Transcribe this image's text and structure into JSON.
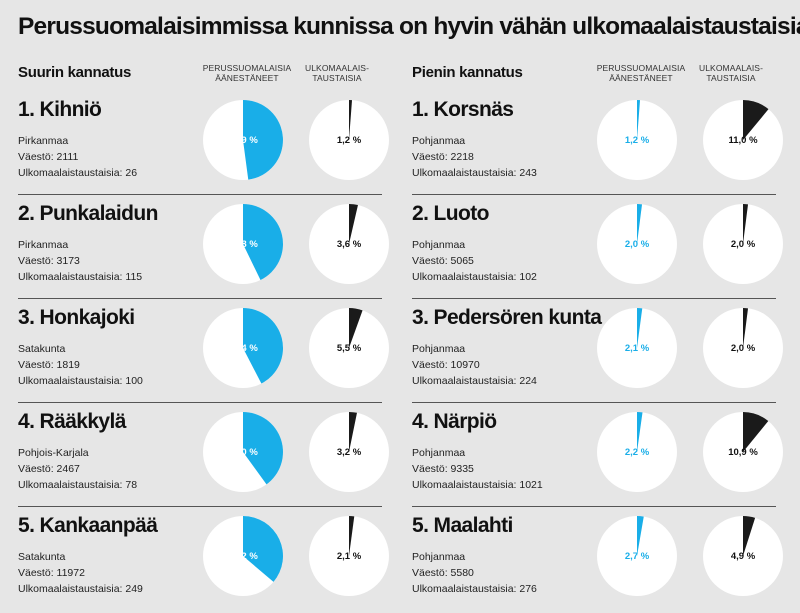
{
  "title": "Perussuomalaisimmissa kunnissa on hyvin vähän ulkomaalaistaustaisia",
  "chart_data": [
    {
      "type": "pie",
      "section": "Suurin kannatus",
      "col_header_ps": "PERUSSUOMALAISIA ÄÄNESTÄNEET",
      "col_header_ul": "ULKOMAALAIS-TAUSTAISIA",
      "rows": [
        {
          "name": "1. Kihniö",
          "region": "Pirkanmaa",
          "population": "Väestö: 2111",
          "foreign": "Ulkomaalaistaustaisia: 26",
          "ps_value": 47.9,
          "ps_label": "47,9 %",
          "ul_value": 1.2,
          "ul_label": "1,2 %"
        },
        {
          "name": "2. Punkalaidun",
          "region": "Pirkanmaa",
          "population": "Väestö: 3173",
          "foreign": "Ulkomaalaistaustaisia: 115",
          "ps_value": 42.8,
          "ps_label": "42,8 %",
          "ul_value": 3.6,
          "ul_label": "3,6 %"
        },
        {
          "name": "3. Honkajoki",
          "region": "Satakunta",
          "population": "Väestö: 1819",
          "foreign": "Ulkomaalaistaustaisia: 100",
          "ps_value": 42.4,
          "ps_label": "42,4 %",
          "ul_value": 5.5,
          "ul_label": "5,5 %"
        },
        {
          "name": "4. Rääkkylä",
          "region": "Pohjois-Karjala",
          "population": "Väestö: 2467",
          "foreign": "Ulkomaalaistaustaisia: 78",
          "ps_value": 40.0,
          "ps_label": "40,0 %",
          "ul_value": 3.2,
          "ul_label": "3,2 %"
        },
        {
          "name": "5. Kankaanpää",
          "region": "Satakunta",
          "population": "Väestö: 11972",
          "foreign": "Ulkomaalaistaustaisia: 249",
          "ps_value": 36.2,
          "ps_label": "36,2 %",
          "ul_value": 2.1,
          "ul_label": "2,1 %"
        }
      ]
    },
    {
      "type": "pie",
      "section": "Pienin kannatus",
      "col_header_ps": "PERUSSUOMALAISIA ÄÄNESTÄNEET",
      "col_header_ul": "ULKOMAALAIS-TAUSTAISIA",
      "rows": [
        {
          "name": "1. Korsnäs",
          "region": "Pohjanmaa",
          "population": "Väestö: 2218",
          "foreign": "Ulkomaalaistaustaisia: 243",
          "ps_value": 1.2,
          "ps_label": "1,2 %",
          "ul_value": 11.0,
          "ul_label": "11,0 %"
        },
        {
          "name": "2. Luoto",
          "region": "Pohjanmaa",
          "population": "Väestö: 5065",
          "foreign": "Ulkomaalaistaustaisia: 102",
          "ps_value": 2.0,
          "ps_label": "2,0 %",
          "ul_value": 2.0,
          "ul_label": "2,0 %"
        },
        {
          "name": "3. Pedersören kunta",
          "region": "Pohjanmaa",
          "population": "Väestö: 10970",
          "foreign": "Ulkomaalaistaustaisia: 224",
          "ps_value": 2.1,
          "ps_label": "2,1 %",
          "ul_value": 2.0,
          "ul_label": "2,0 %"
        },
        {
          "name": "4. Närpiö",
          "region": "Pohjanmaa",
          "population": "Väestö: 9335",
          "foreign": "Ulkomaalaistaustaisia: 1021",
          "ps_value": 2.2,
          "ps_label": "2,2 %",
          "ul_value": 10.9,
          "ul_label": "10,9 %"
        },
        {
          "name": "5. Maalahti",
          "region": "Pohjanmaa",
          "population": "Väestö: 5580",
          "foreign": "Ulkomaalaistaustaisia: 276",
          "ps_value": 2.7,
          "ps_label": "2,7 %",
          "ul_value": 4.9,
          "ul_label": "4,9 %"
        }
      ]
    }
  ],
  "colors": {
    "background": "#e6e6e6",
    "ps": "#19aee8",
    "ul": "#1a1a1a",
    "pie_base": "#ffffff"
  }
}
